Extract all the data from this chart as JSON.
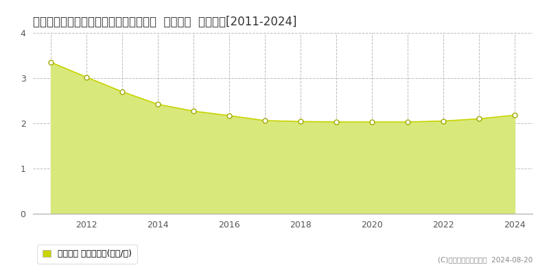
{
  "title": "秋田県秋田市御所野湯本５丁目１番２外  地価公示  地価推移[2011-2024]",
  "years": [
    2011,
    2012,
    2013,
    2014,
    2015,
    2016,
    2017,
    2018,
    2019,
    2020,
    2021,
    2022,
    2023,
    2024
  ],
  "values": [
    3.35,
    3.02,
    2.7,
    2.42,
    2.27,
    2.17,
    2.06,
    2.04,
    2.03,
    2.03,
    2.03,
    2.05,
    2.1,
    2.18
  ],
  "ylim": [
    0,
    4
  ],
  "yticks": [
    0,
    1,
    2,
    3,
    4
  ],
  "line_color": "#c8d400",
  "fill_color": "#d8e87a",
  "fill_alpha": 1.0,
  "marker_color": "white",
  "marker_edge_color": "#a0a800",
  "marker_size": 5,
  "grid_color": "#bbbbbb",
  "background_color": "#ffffff",
  "legend_label": "地価公示 平均坪単価(万円/坪)",
  "legend_color": "#c8d400",
  "copyright_text": "(C)土地価格ドットコム  2024-08-20",
  "title_fontsize": 12,
  "tick_fontsize": 9,
  "legend_fontsize": 9
}
